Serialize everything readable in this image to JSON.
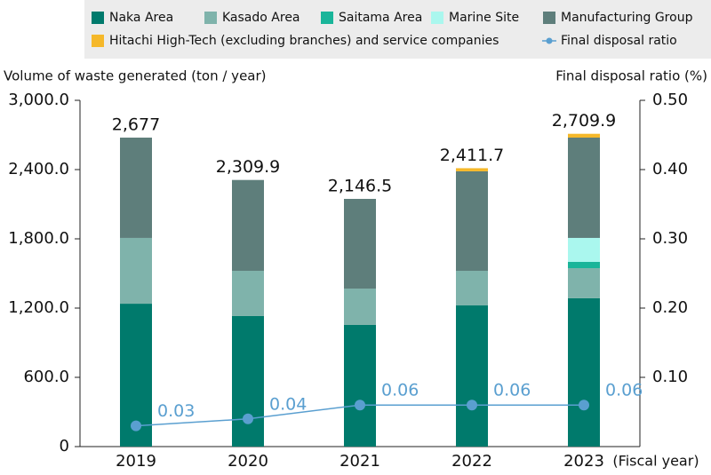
{
  "chart_data": {
    "type": "bar",
    "y_label": "Volume of waste generated (ton / year)",
    "y2_label": "Final disposal ratio (%)",
    "x_label": "(Fiscal year)",
    "categories": [
      "2019",
      "2020",
      "2021",
      "2022",
      "2023"
    ],
    "stacked": true,
    "series": [
      {
        "name": "Naka Area",
        "color": "#007a6c",
        "values": [
          1238,
          1131,
          1054,
          1223,
          1285
        ]
      },
      {
        "name": "Kasado Area",
        "color": "#7fb3ab",
        "values": [
          570,
          392,
          315,
          300,
          261
        ]
      },
      {
        "name": "Saitama Area",
        "color": "#1ab59a",
        "values": [
          0,
          0,
          0,
          0,
          54
        ]
      },
      {
        "name": "Marine Site",
        "color": "#aaf7ee",
        "values": [
          0,
          0,
          0,
          0,
          208
        ]
      },
      {
        "name": "Manufacturing Group",
        "color": "#5e7e7b",
        "values": [
          869,
          787,
          777,
          862,
          869
        ]
      },
      {
        "name": "Hitachi High-Tech (excluding branches) and service companies",
        "color": "#f5b82a",
        "values": [
          0,
          0,
          0,
          27,
          33
        ]
      },
      {
        "name": "Final disposal ratio",
        "color": "#5a9fd0",
        "type": "line",
        "axis": "y2",
        "values": [
          0.03,
          0.04,
          0.06,
          0.06,
          0.06
        ]
      }
    ],
    "totals": [
      2677,
      2309.9,
      2146.5,
      2411.7,
      2709.9
    ],
    "total_labels": [
      "2,677",
      "2,309.9",
      "2,146.5",
      "2,411.7",
      "2,709.9"
    ],
    "ylim": [
      0,
      3000
    ],
    "yticks": [
      0,
      {
        "value": 600,
        "label": "600.0"
      },
      {
        "value": 1200,
        "label": "1,200.0"
      },
      {
        "value": 1800,
        "label": "1,800.0"
      },
      {
        "value": 2400,
        "label": "2,400.0"
      },
      {
        "value": 3000,
        "label": "3,000.0"
      }
    ],
    "y2lim": [
      0,
      0.5
    ],
    "y2ticks": [
      {
        "value": 0.1,
        "label": "0.10"
      },
      {
        "value": 0.2,
        "label": "0.20"
      },
      {
        "value": 0.3,
        "label": "0.30"
      },
      {
        "value": 0.4,
        "label": "0.40"
      },
      {
        "value": 0.5,
        "label": "0.50"
      }
    ],
    "grid": false
  }
}
